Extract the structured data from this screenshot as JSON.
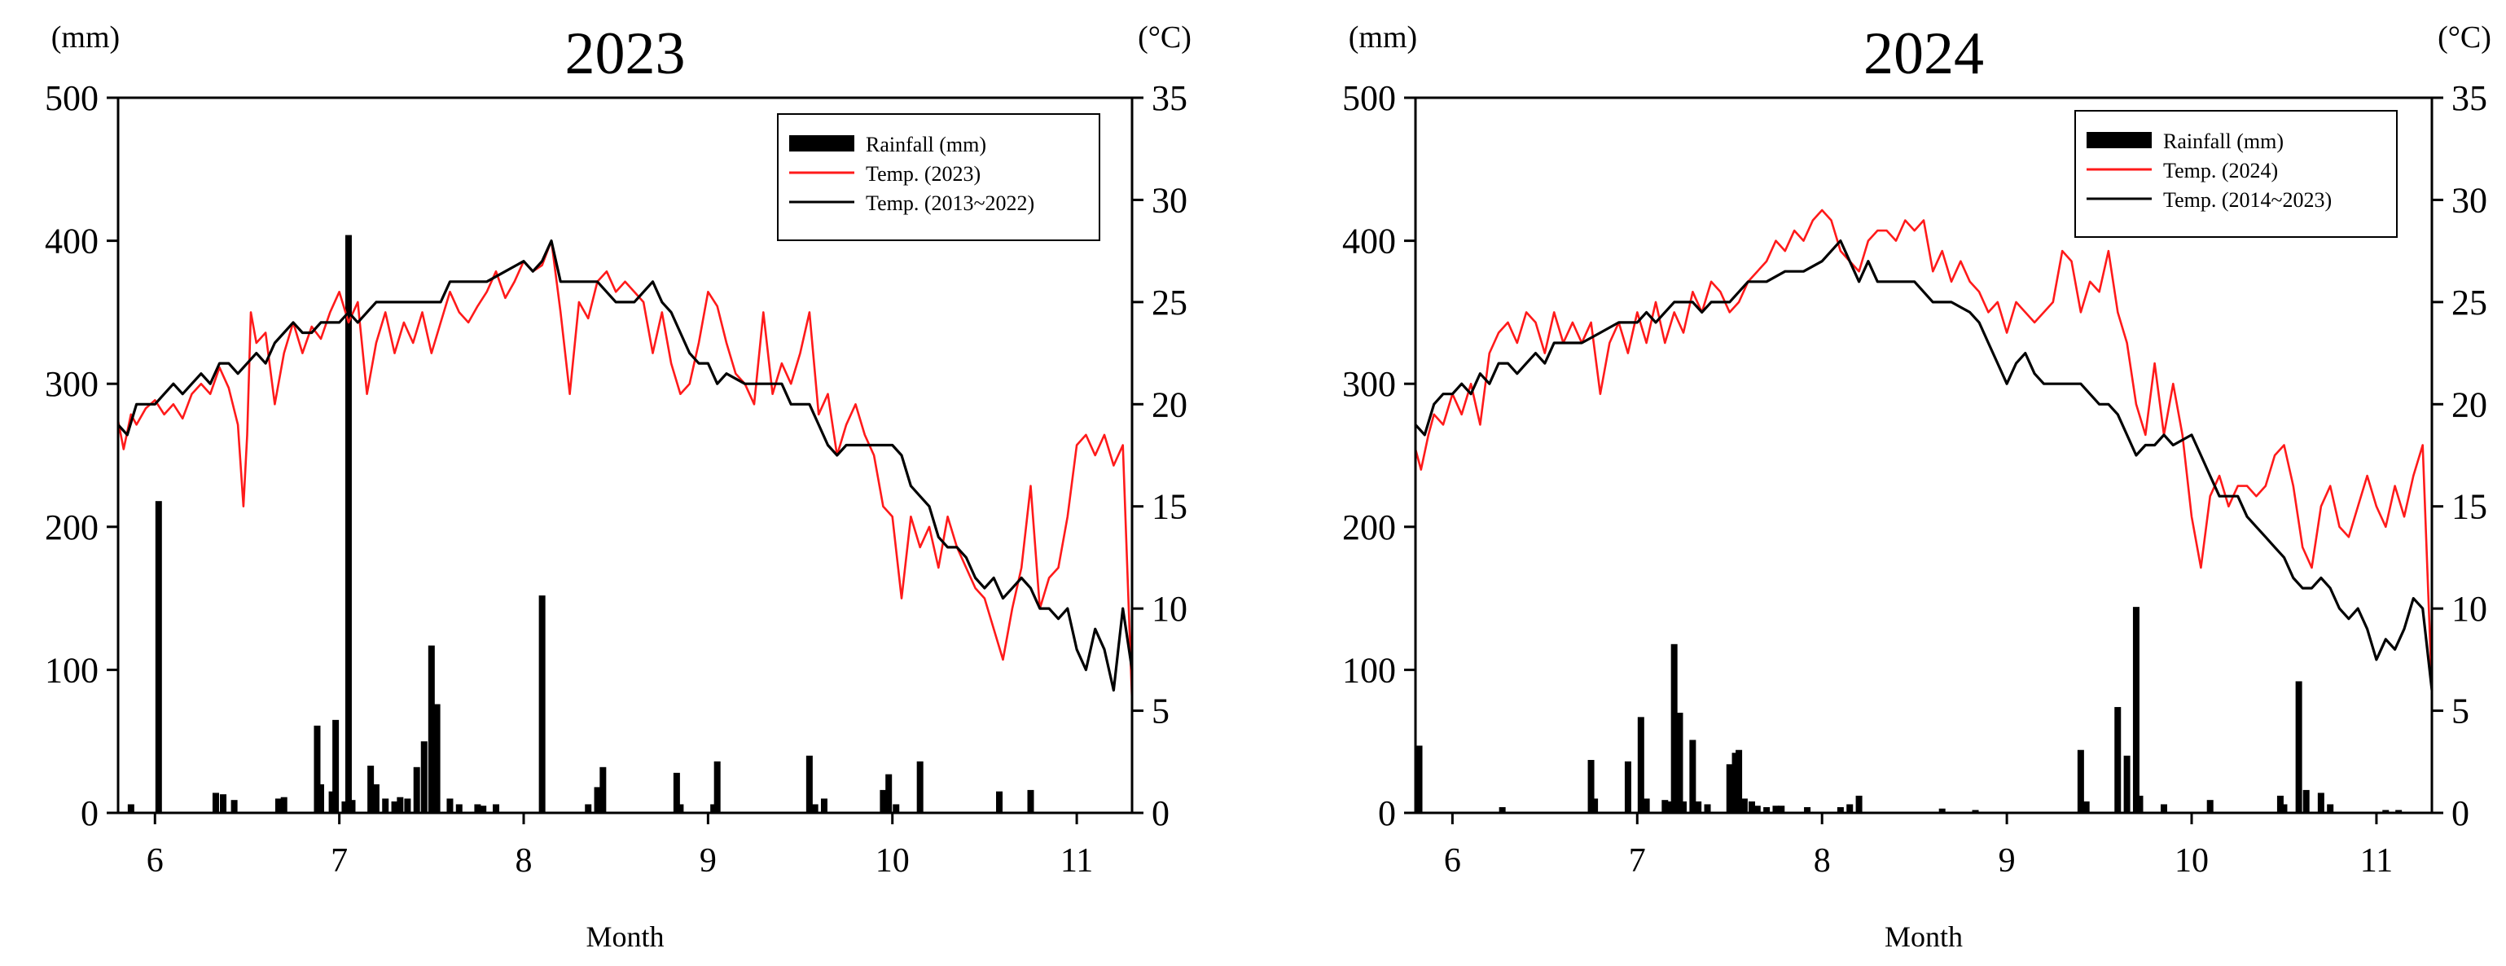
{
  "chart_data": [
    {
      "type": "bar+line",
      "title": "2023",
      "xlabel": "Month",
      "ylabel_left": "(mm)",
      "ylabel_right": "(°C)",
      "x_ticks": [
        6,
        7,
        8,
        9,
        10,
        11
      ],
      "xlim": [
        5.8,
        11.3
      ],
      "ylim_left": [
        0,
        500
      ],
      "yticks_left": [
        0,
        100,
        200,
        300,
        400,
        500
      ],
      "ylim_right": [
        0,
        35
      ],
      "yticks_right": [
        0,
        5,
        10,
        15,
        20,
        25,
        30,
        35
      ],
      "legend": [
        "Rainfall (mm)",
        "Temp. (2023)",
        "Temp. (2013~2022)"
      ],
      "legend_position": "top-right",
      "colors": {
        "rainfall": "#000000",
        "temp_current": "#ff1a1a",
        "temp_normal": "#000000"
      },
      "rainfall": {
        "name": "Rainfall (mm)",
        "x": [
          5.87,
          6.02,
          6.33,
          6.37,
          6.43,
          6.67,
          6.7,
          6.88,
          6.9,
          6.96,
          6.98,
          7.03,
          7.05,
          7.07,
          7.17,
          7.2,
          7.25,
          7.3,
          7.33,
          7.37,
          7.42,
          7.46,
          7.5,
          7.53,
          7.6,
          7.65,
          7.75,
          7.78,
          7.85,
          8.1,
          8.35,
          8.4,
          8.43,
          8.83,
          8.85,
          9.03,
          9.05,
          9.55,
          9.58,
          9.63,
          9.95,
          9.98,
          10.02,
          10.15,
          10.58,
          10.75
        ],
        "values": [
          6,
          218,
          14,
          13,
          9,
          10,
          11,
          61,
          20,
          15,
          65,
          8,
          404,
          9,
          33,
          20,
          10,
          8,
          11,
          10,
          32,
          50,
          117,
          76,
          10,
          6,
          6,
          5,
          6,
          152,
          6,
          18,
          32,
          28,
          6,
          6,
          36,
          40,
          6,
          10,
          16,
          27,
          6,
          36,
          15,
          16
        ]
      },
      "series": [
        {
          "name": "Temp. (2023)",
          "x": [
            5.8,
            5.83,
            5.87,
            5.9,
            5.95,
            6.0,
            6.05,
            6.1,
            6.15,
            6.2,
            6.25,
            6.3,
            6.35,
            6.4,
            6.45,
            6.48,
            6.5,
            6.52,
            6.55,
            6.6,
            6.65,
            6.7,
            6.75,
            6.8,
            6.85,
            6.9,
            6.95,
            7.0,
            7.05,
            7.1,
            7.15,
            7.2,
            7.25,
            7.3,
            7.35,
            7.4,
            7.45,
            7.5,
            7.55,
            7.6,
            7.65,
            7.7,
            7.75,
            7.8,
            7.85,
            7.9,
            7.95,
            8.0,
            8.05,
            8.1,
            8.15,
            8.2,
            8.25,
            8.3,
            8.35,
            8.4,
            8.45,
            8.5,
            8.55,
            8.6,
            8.65,
            8.7,
            8.75,
            8.8,
            8.85,
            8.9,
            8.95,
            9.0,
            9.05,
            9.1,
            9.15,
            9.2,
            9.25,
            9.3,
            9.35,
            9.4,
            9.45,
            9.5,
            9.55,
            9.6,
            9.65,
            9.7,
            9.75,
            9.8,
            9.85,
            9.9,
            9.95,
            10.0,
            10.05,
            10.1,
            10.15,
            10.2,
            10.25,
            10.3,
            10.35,
            10.4,
            10.45,
            10.5,
            10.55,
            10.6,
            10.65,
            10.7,
            10.75,
            10.8,
            10.85,
            10.9,
            10.95,
            11.0,
            11.05,
            11.1,
            11.15,
            11.2,
            11.25,
            11.3
          ],
          "values": [
            19.2,
            17.8,
            19.5,
            19.0,
            19.8,
            20.2,
            19.5,
            20.0,
            19.3,
            20.5,
            21.0,
            20.5,
            21.8,
            20.8,
            19.0,
            15.0,
            18.5,
            24.5,
            23.0,
            23.5,
            20.0,
            22.5,
            24.0,
            22.5,
            23.8,
            23.2,
            24.5,
            25.5,
            24.0,
            25.0,
            20.5,
            23.0,
            24.5,
            22.5,
            24.0,
            23.0,
            24.5,
            22.5,
            24.0,
            25.5,
            24.5,
            24.0,
            24.8,
            25.5,
            26.5,
            25.2,
            26.0,
            27.0,
            26.5,
            26.8,
            28.0,
            24.5,
            20.5,
            25.0,
            24.2,
            26.0,
            26.5,
            25.5,
            26.0,
            25.5,
            25.0,
            22.5,
            24.5,
            22.0,
            20.5,
            21.0,
            23.0,
            25.5,
            24.8,
            23.0,
            21.5,
            21.0,
            20.0,
            24.5,
            20.5,
            22.0,
            21.0,
            22.5,
            24.5,
            19.5,
            20.5,
            17.5,
            19.0,
            20.0,
            18.5,
            17.5,
            15.0,
            14.5,
            10.5,
            14.5,
            13.0,
            14.0,
            12.0,
            14.5,
            13.0,
            12.0,
            11.0,
            10.5,
            9.0,
            7.5,
            10.0,
            12.0,
            16.0,
            10.0,
            11.5,
            12.0,
            14.5,
            18.0,
            18.5,
            17.5,
            18.5,
            17.0,
            18.0,
            5.5
          ]
        },
        {
          "name": "Temp. (2013~2022)",
          "x": [
            5.8,
            5.85,
            5.9,
            5.95,
            6.0,
            6.05,
            6.1,
            6.15,
            6.2,
            6.25,
            6.3,
            6.35,
            6.4,
            6.45,
            6.5,
            6.55,
            6.6,
            6.65,
            6.7,
            6.75,
            6.8,
            6.85,
            6.9,
            6.95,
            7.0,
            7.05,
            7.1,
            7.15,
            7.2,
            7.3,
            7.4,
            7.5,
            7.55,
            7.6,
            7.7,
            7.8,
            7.9,
            8.0,
            8.05,
            8.1,
            8.15,
            8.2,
            8.3,
            8.4,
            8.5,
            8.6,
            8.7,
            8.75,
            8.8,
            8.85,
            8.9,
            8.95,
            9.0,
            9.05,
            9.1,
            9.2,
            9.3,
            9.4,
            9.45,
            9.5,
            9.55,
            9.6,
            9.65,
            9.7,
            9.75,
            9.8,
            9.9,
            10.0,
            10.05,
            10.1,
            10.15,
            10.2,
            10.25,
            10.3,
            10.35,
            10.4,
            10.45,
            10.5,
            10.55,
            10.6,
            10.65,
            10.7,
            10.75,
            10.8,
            10.85,
            10.9,
            10.95,
            11.0,
            11.05,
            11.1,
            11.15,
            11.2,
            11.25,
            11.3
          ],
          "values": [
            19.0,
            18.5,
            20.0,
            20.0,
            20.0,
            20.5,
            21.0,
            20.5,
            21.0,
            21.5,
            21.0,
            22.0,
            22.0,
            21.5,
            22.0,
            22.5,
            22.0,
            23.0,
            23.5,
            24.0,
            23.5,
            23.5,
            24.0,
            24.0,
            24.0,
            24.5,
            24.0,
            24.5,
            25.0,
            25.0,
            25.0,
            25.0,
            25.0,
            26.0,
            26.0,
            26.0,
            26.5,
            27.0,
            26.5,
            27.0,
            28.0,
            26.0,
            26.0,
            26.0,
            25.0,
            25.0,
            26.0,
            25.0,
            24.5,
            23.5,
            22.5,
            22.0,
            22.0,
            21.0,
            21.5,
            21.0,
            21.0,
            21.0,
            20.0,
            20.0,
            20.0,
            19.0,
            18.0,
            17.5,
            18.0,
            18.0,
            18.0,
            18.0,
            17.5,
            16.0,
            15.5,
            15.0,
            13.5,
            13.0,
            13.0,
            12.5,
            11.5,
            11.0,
            11.5,
            10.5,
            11.0,
            11.5,
            11.0,
            10.0,
            10.0,
            9.5,
            10.0,
            8.0,
            7.0,
            9.0,
            8.0,
            6.0,
            10.0,
            7.0
          ]
        }
      ]
    },
    {
      "type": "bar+line",
      "title": "2024",
      "xlabel": "Month",
      "ylabel_left": "(mm)",
      "ylabel_right": "(°C)",
      "x_ticks": [
        6,
        7,
        8,
        9,
        10,
        11
      ],
      "xlim": [
        5.8,
        11.3
      ],
      "ylim_left": [
        0,
        500
      ],
      "yticks_left": [
        0,
        100,
        200,
        300,
        400,
        500
      ],
      "ylim_right": [
        0,
        35
      ],
      "yticks_right": [
        0,
        5,
        10,
        15,
        20,
        25,
        30,
        35
      ],
      "legend": [
        "Rainfall (mm)",
        "Temp. (2024)",
        "Temp. (2014~2023)"
      ],
      "legend_position": "top-right",
      "colors": {
        "rainfall": "#000000",
        "temp_current": "#ff1a1a",
        "temp_normal": "#000000"
      },
      "rainfall": {
        "name": "Rainfall (mm)",
        "x": [
          5.82,
          6.27,
          6.75,
          6.77,
          6.95,
          7.02,
          7.05,
          7.15,
          7.18,
          7.2,
          7.23,
          7.25,
          7.3,
          7.33,
          7.38,
          7.5,
          7.53,
          7.55,
          7.58,
          7.62,
          7.65,
          7.7,
          7.75,
          7.78,
          7.92,
          8.1,
          8.15,
          8.2,
          8.65,
          8.83,
          9.4,
          9.43,
          9.6,
          9.65,
          9.7,
          9.72,
          9.85,
          10.1,
          10.48,
          10.5,
          10.58,
          10.62,
          10.7,
          10.75,
          11.05,
          11.12
        ],
        "values": [
          47,
          4,
          37,
          10,
          36,
          67,
          10,
          9,
          8,
          118,
          70,
          8,
          51,
          8,
          6,
          34,
          42,
          44,
          10,
          8,
          5,
          4,
          5,
          5,
          4,
          4,
          6,
          12,
          3,
          2,
          44,
          8,
          74,
          40,
          144,
          12,
          6,
          9,
          12,
          6,
          92,
          16,
          14,
          6,
          2,
          2
        ]
      },
      "series": [
        {
          "name": "Temp. (2024)",
          "x": [
            5.8,
            5.83,
            5.87,
            5.9,
            5.95,
            6.0,
            6.05,
            6.1,
            6.15,
            6.2,
            6.25,
            6.3,
            6.35,
            6.4,
            6.45,
            6.5,
            6.55,
            6.6,
            6.65,
            6.7,
            6.75,
            6.8,
            6.85,
            6.9,
            6.95,
            7.0,
            7.05,
            7.1,
            7.15,
            7.2,
            7.25,
            7.3,
            7.35,
            7.4,
            7.45,
            7.5,
            7.55,
            7.6,
            7.65,
            7.7,
            7.75,
            7.8,
            7.85,
            7.9,
            7.95,
            8.0,
            8.05,
            8.1,
            8.15,
            8.2,
            8.25,
            8.3,
            8.35,
            8.4,
            8.45,
            8.5,
            8.55,
            8.6,
            8.65,
            8.7,
            8.75,
            8.8,
            8.85,
            8.9,
            8.95,
            9.0,
            9.05,
            9.1,
            9.15,
            9.2,
            9.25,
            9.3,
            9.35,
            9.4,
            9.45,
            9.5,
            9.55,
            9.6,
            9.65,
            9.7,
            9.75,
            9.8,
            9.85,
            9.9,
            9.95,
            10.0,
            10.05,
            10.1,
            10.15,
            10.2,
            10.25,
            10.3,
            10.35,
            10.4,
            10.45,
            10.5,
            10.55,
            10.6,
            10.65,
            10.7,
            10.75,
            10.8,
            10.85,
            10.9,
            10.95,
            11.0,
            11.05,
            11.1,
            11.15,
            11.2,
            11.25,
            11.3
          ],
          "values": [
            17.8,
            16.8,
            18.5,
            19.5,
            19.0,
            20.5,
            19.5,
            21.0,
            19.0,
            22.5,
            23.5,
            24.0,
            23.0,
            24.5,
            24.0,
            22.5,
            24.5,
            23.0,
            24.0,
            23.0,
            24.0,
            20.5,
            23.0,
            24.0,
            22.5,
            24.5,
            23.0,
            25.0,
            23.0,
            24.5,
            23.5,
            25.5,
            24.5,
            26.0,
            25.5,
            24.5,
            25.0,
            26.0,
            26.5,
            27.0,
            28.0,
            27.5,
            28.5,
            28.0,
            29.0,
            29.5,
            29.0,
            27.5,
            27.0,
            26.5,
            28.0,
            28.5,
            28.5,
            28.0,
            29.0,
            28.5,
            29.0,
            26.5,
            27.5,
            26.0,
            27.0,
            26.0,
            25.5,
            24.5,
            25.0,
            23.5,
            25.0,
            24.5,
            24.0,
            24.5,
            25.0,
            27.5,
            27.0,
            24.5,
            26.0,
            25.5,
            27.5,
            24.5,
            23.0,
            20.0,
            18.5,
            22.0,
            18.5,
            21.0,
            18.5,
            14.5,
            12.0,
            15.5,
            16.5,
            15.0,
            16.0,
            16.0,
            15.5,
            16.0,
            17.5,
            18.0,
            16.0,
            13.0,
            12.0,
            15.0,
            16.0,
            14.0,
            13.5,
            15.0,
            16.5,
            15.0,
            14.0,
            16.0,
            14.5,
            16.5,
            18.0,
            6.0
          ]
        },
        {
          "name": "Temp. (2014~2023)",
          "x": [
            5.8,
            5.85,
            5.9,
            5.95,
            6.0,
            6.05,
            6.1,
            6.15,
            6.2,
            6.25,
            6.3,
            6.35,
            6.4,
            6.45,
            6.5,
            6.55,
            6.6,
            6.7,
            6.8,
            6.9,
            7.0,
            7.05,
            7.1,
            7.2,
            7.3,
            7.35,
            7.4,
            7.5,
            7.6,
            7.7,
            7.8,
            7.9,
            8.0,
            8.1,
            8.15,
            8.2,
            8.25,
            8.3,
            8.4,
            8.5,
            8.6,
            8.7,
            8.8,
            8.85,
            8.9,
            8.95,
            9.0,
            9.05,
            9.1,
            9.15,
            9.2,
            9.3,
            9.4,
            9.5,
            9.55,
            9.6,
            9.65,
            9.7,
            9.75,
            9.8,
            9.85,
            9.9,
            10.0,
            10.05,
            10.1,
            10.15,
            10.2,
            10.25,
            10.3,
            10.35,
            10.4,
            10.45,
            10.5,
            10.55,
            10.6,
            10.65,
            10.7,
            10.75,
            10.8,
            10.85,
            10.9,
            10.95,
            11.0,
            11.05,
            11.1,
            11.15,
            11.2,
            11.25,
            11.3
          ],
          "values": [
            19.0,
            18.5,
            20.0,
            20.5,
            20.5,
            21.0,
            20.5,
            21.5,
            21.0,
            22.0,
            22.0,
            21.5,
            22.0,
            22.5,
            22.0,
            23.0,
            23.0,
            23.0,
            23.5,
            24.0,
            24.0,
            24.5,
            24.0,
            25.0,
            25.0,
            24.5,
            25.0,
            25.0,
            26.0,
            26.0,
            26.5,
            26.5,
            27.0,
            28.0,
            27.0,
            26.0,
            27.0,
            26.0,
            26.0,
            26.0,
            25.0,
            25.0,
            24.5,
            24.0,
            23.0,
            22.0,
            21.0,
            22.0,
            22.5,
            21.5,
            21.0,
            21.0,
            21.0,
            20.0,
            20.0,
            19.5,
            18.5,
            17.5,
            18.0,
            18.0,
            18.5,
            18.0,
            18.5,
            17.5,
            16.5,
            15.5,
            15.5,
            15.5,
            14.5,
            14.0,
            13.5,
            13.0,
            12.5,
            11.5,
            11.0,
            11.0,
            11.5,
            11.0,
            10.0,
            9.5,
            10.0,
            9.0,
            7.5,
            8.5,
            8.0,
            9.0,
            10.5,
            10.0,
            6.0
          ]
        }
      ]
    }
  ]
}
